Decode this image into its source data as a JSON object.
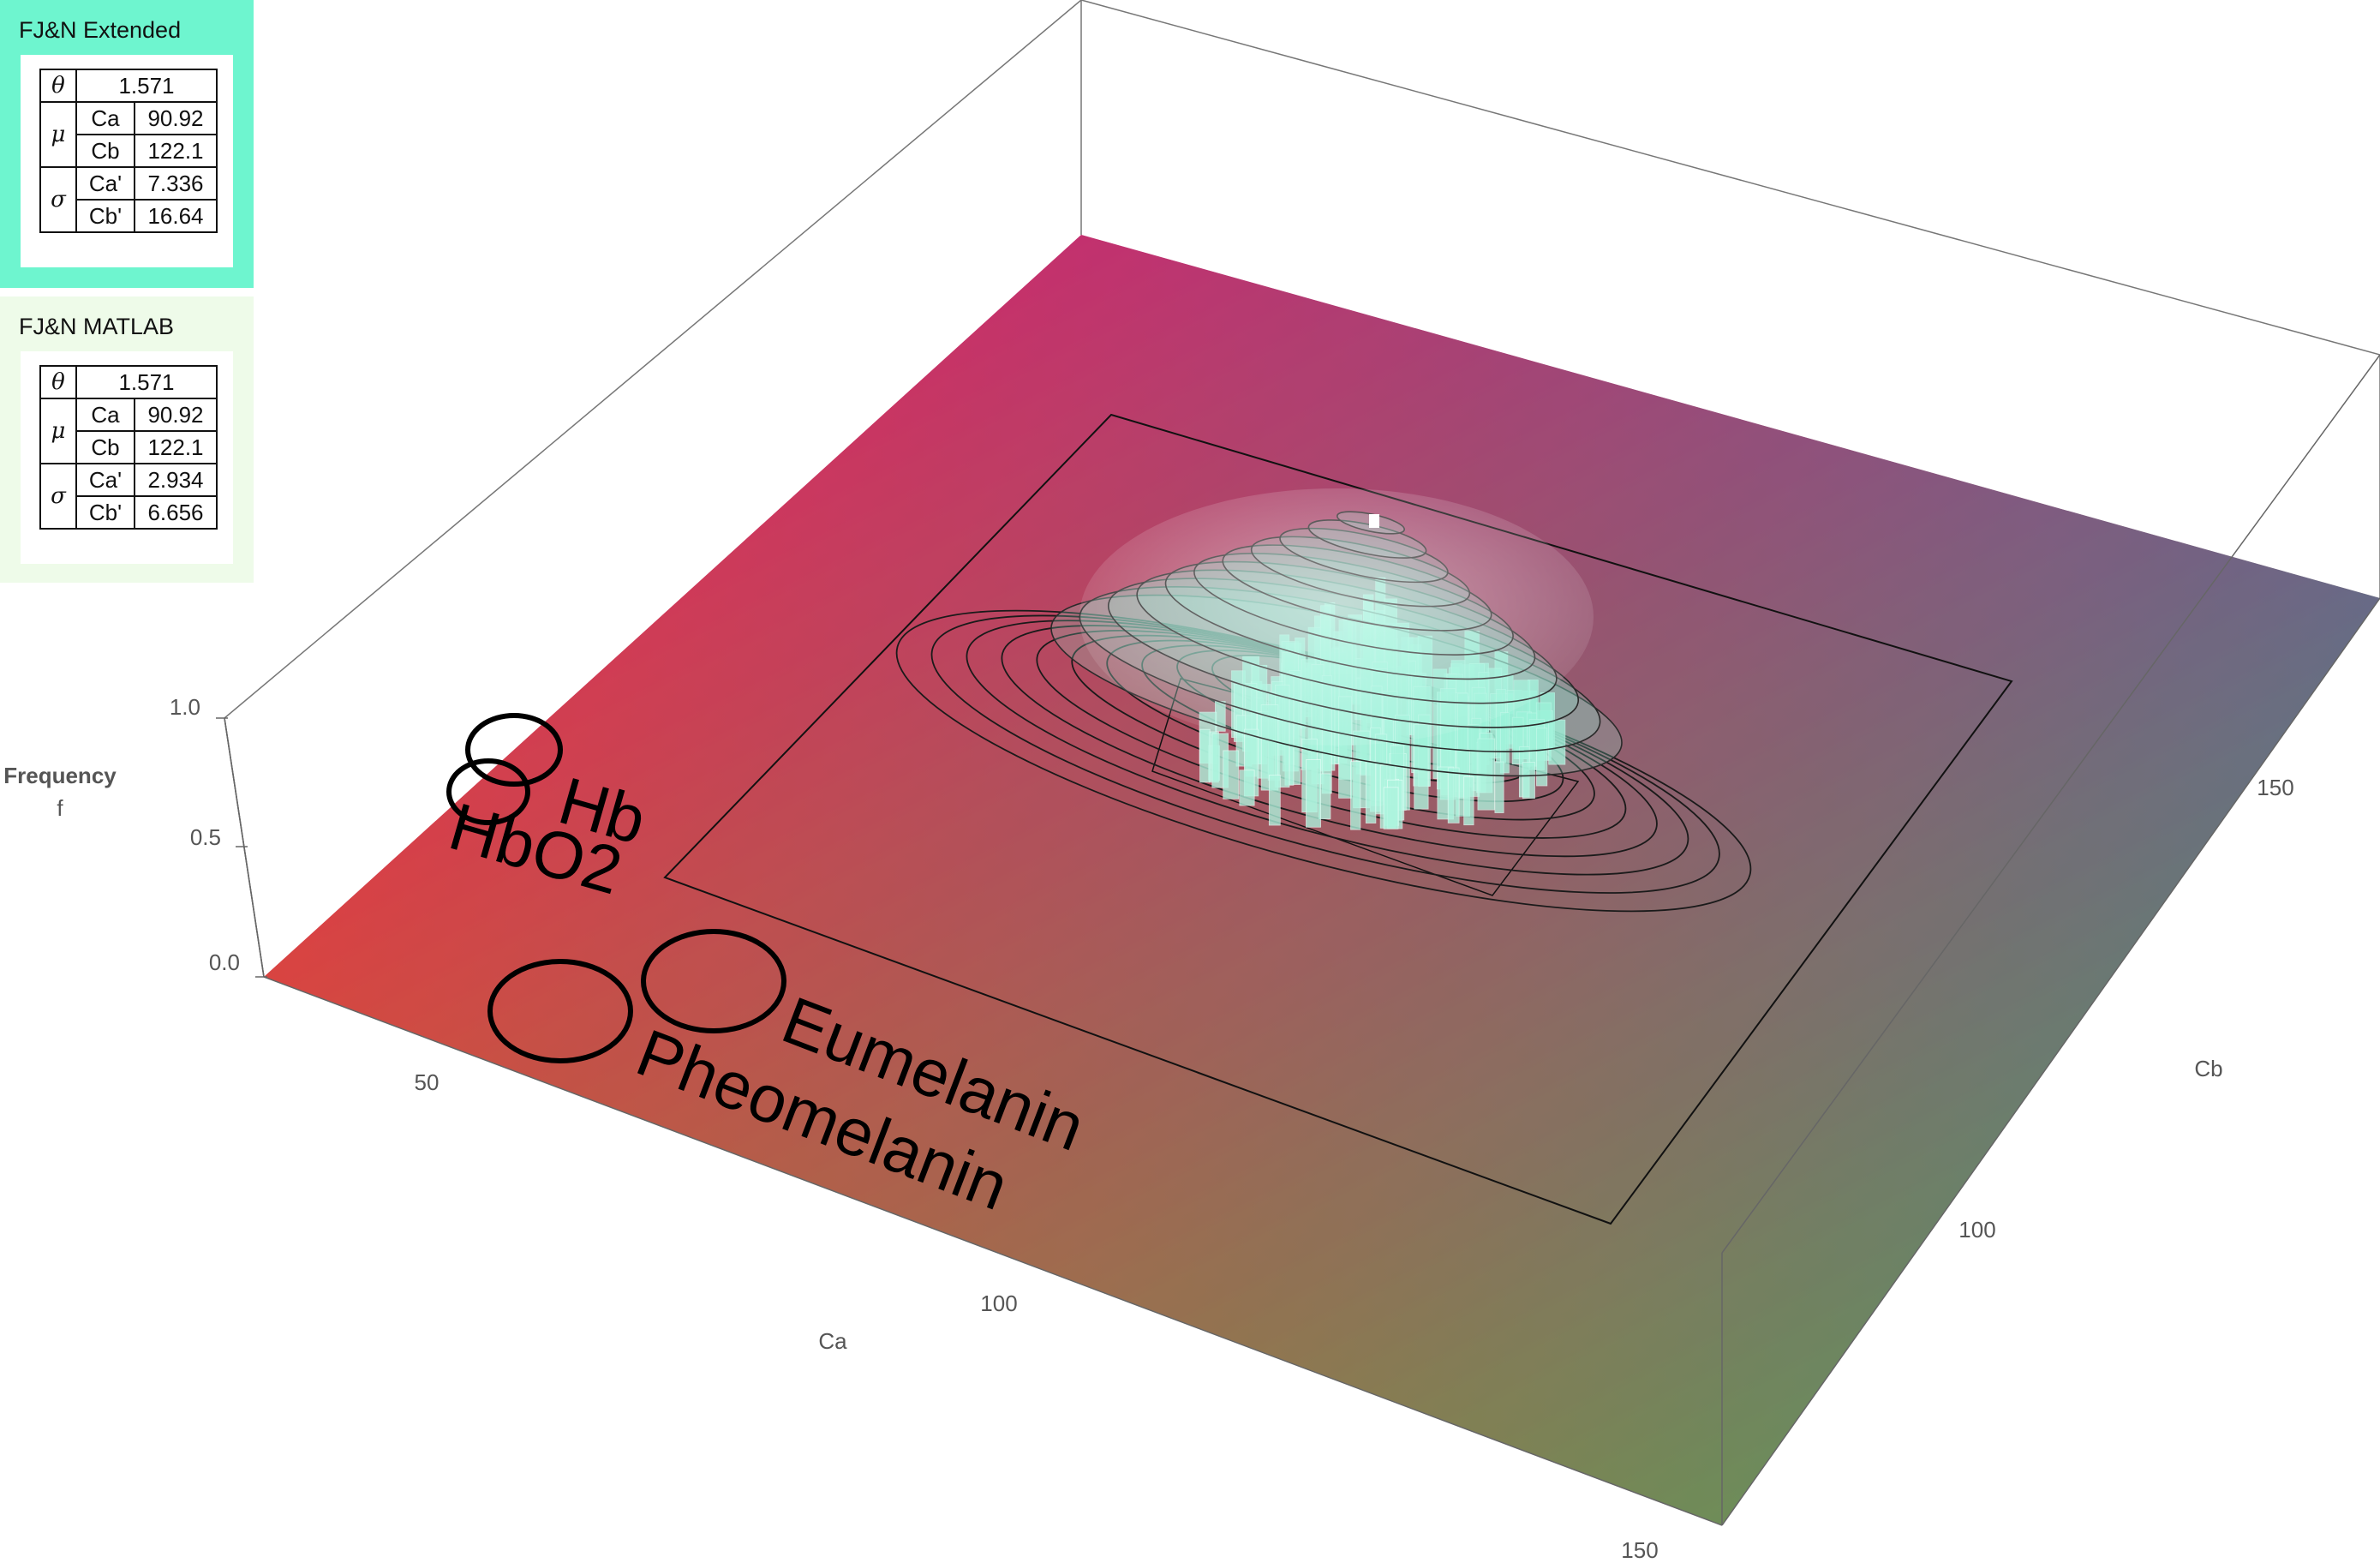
{
  "panels": [
    {
      "title": "FJ&N  Extended",
      "bg": "#6ef5cf",
      "theta_symbol": "θ",
      "mu_symbol": "μ",
      "sigma_symbol": "σ",
      "theta": "1.571",
      "mu": [
        {
          "name": "Ca",
          "value": "90.92"
        },
        {
          "name": "Cb",
          "value": "122.1"
        }
      ],
      "sigma": [
        {
          "name": "Ca'",
          "value": "7.336"
        },
        {
          "name": "Cb'",
          "value": "16.64"
        }
      ]
    },
    {
      "title": "FJ&N  MATLAB",
      "bg": "#eefbe9",
      "theta_symbol": "θ",
      "mu_symbol": "μ",
      "sigma_symbol": "σ",
      "theta": "1.571",
      "mu": [
        {
          "name": "Ca",
          "value": "90.92"
        },
        {
          "name": "Cb",
          "value": "122.1"
        }
      ],
      "sigma": [
        {
          "name": "Ca'",
          "value": "2.934"
        },
        {
          "name": "Cb'",
          "value": "6.656"
        }
      ]
    }
  ],
  "chart_data": {
    "type": "surface",
    "xlabel": "Ca",
    "ylabel": "Cb",
    "zlabel_line1": "Frequency",
    "zlabel_line2": "f",
    "x_ticks": [
      "50",
      "100",
      "150"
    ],
    "y_ticks": [
      "100",
      "150"
    ],
    "z_ticks": [
      "0.0",
      "0.5",
      "1.0"
    ],
    "zlim": [
      0,
      1
    ],
    "surface": {
      "function": "gaussian",
      "center": {
        "Ca": 90.92,
        "Cb": 122.1
      },
      "color": "#8ef0d8",
      "contour_levels": 10
    },
    "histogram": {
      "color": "#aef5df"
    },
    "floor_gradient": {
      "top": "#ee0a8c",
      "right": "#4b5fc4",
      "bottom": "#5ccc3c",
      "left": "#ff5f10"
    },
    "markers": [
      {
        "label": "Hb"
      },
      {
        "label": "HbO2"
      },
      {
        "label": "Eumelanin"
      },
      {
        "label": "Pheomelanin"
      }
    ]
  }
}
